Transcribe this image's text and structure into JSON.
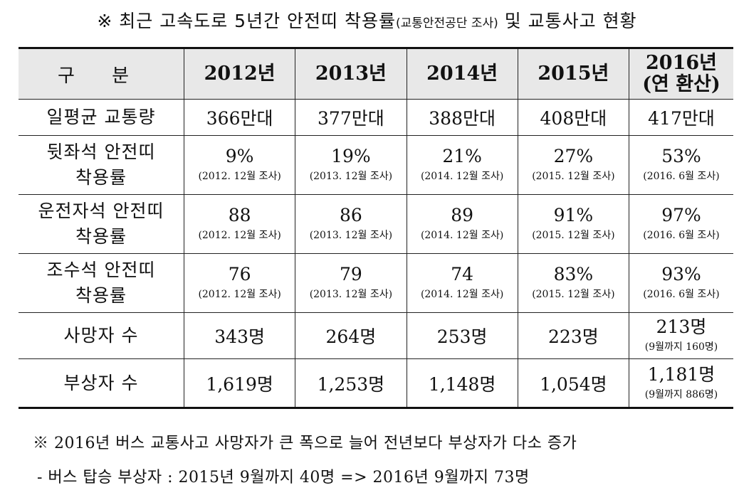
{
  "title": {
    "main_before": "※ 최근 고속도로 5년간 안전띠 착용률",
    "small": "(교통안전공단 조사)",
    "main_after": " 및 교통사고 현황"
  },
  "table": {
    "header": {
      "label": "구 분",
      "years": [
        {
          "line1": "2012년",
          "line2": ""
        },
        {
          "line1": "2013년",
          "line2": ""
        },
        {
          "line1": "2014년",
          "line2": ""
        },
        {
          "line1": "2015년",
          "line2": ""
        },
        {
          "line1": "2016년",
          "line2": "(연 환산)"
        }
      ]
    },
    "rows": [
      {
        "label": "일평균 교통량",
        "cells": [
          {
            "main": "366만대",
            "note": ""
          },
          {
            "main": "377만대",
            "note": ""
          },
          {
            "main": "388만대",
            "note": ""
          },
          {
            "main": "408만대",
            "note": ""
          },
          {
            "main": "417만대",
            "note": ""
          }
        ]
      },
      {
        "label": "뒷좌석 안전띠 착용률",
        "cells": [
          {
            "main": "9%",
            "note": "(2012. 12월 조사)"
          },
          {
            "main": "19%",
            "note": "(2013. 12월 조사)"
          },
          {
            "main": "21%",
            "note": "(2014. 12월 조사)"
          },
          {
            "main": "27%",
            "note": "(2015. 12월 조사)"
          },
          {
            "main": "53%",
            "note": "(2016. 6월 조사)"
          }
        ]
      },
      {
        "label": "운전자석 안전띠 착용률",
        "cells": [
          {
            "main": "88",
            "note": "(2012. 12월 조사)"
          },
          {
            "main": "86",
            "note": "(2013. 12월 조사)"
          },
          {
            "main": "89",
            "note": "(2014. 12월 조사)"
          },
          {
            "main": "91%",
            "note": "(2015. 12월 조사)"
          },
          {
            "main": "97%",
            "note": "(2016. 6월 조사)"
          }
        ]
      },
      {
        "label": "조수석 안전띠 착용률",
        "cells": [
          {
            "main": "76",
            "note": "(2012. 12월 조사)"
          },
          {
            "main": "79",
            "note": "(2013. 12월 조사)"
          },
          {
            "main": "74",
            "note": "(2014. 12월 조사)"
          },
          {
            "main": "83%",
            "note": "(2015. 12월 조사)"
          },
          {
            "main": "93%",
            "note": "(2016. 6월 조사)"
          }
        ]
      },
      {
        "label": "사망자 수",
        "cells": [
          {
            "main": "343명",
            "note": ""
          },
          {
            "main": "264명",
            "note": ""
          },
          {
            "main": "253명",
            "note": ""
          },
          {
            "main": "223명",
            "note": ""
          },
          {
            "main": "213명",
            "note": "(9월까지 160명)"
          }
        ]
      },
      {
        "label": "부상자 수",
        "cells": [
          {
            "main": "1,619명",
            "note": ""
          },
          {
            "main": "1,253명",
            "note": ""
          },
          {
            "main": "1,148명",
            "note": ""
          },
          {
            "main": "1,054명",
            "note": ""
          },
          {
            "main": "1,181명",
            "note": "(9월까지 886명)"
          }
        ]
      }
    ]
  },
  "footnotes": [
    "※ 2016년 버스 교통사고 사망자가 큰 폭으로 늘어 전년보다 부상자가 다소 증가",
    "- 버스 탑승 부상자 : 2015년 9월까지 40명 => 2016년 9월까지 73명"
  ],
  "colors": {
    "header_bg": "#e8e8e8",
    "border": "#222222",
    "text": "#111111"
  }
}
